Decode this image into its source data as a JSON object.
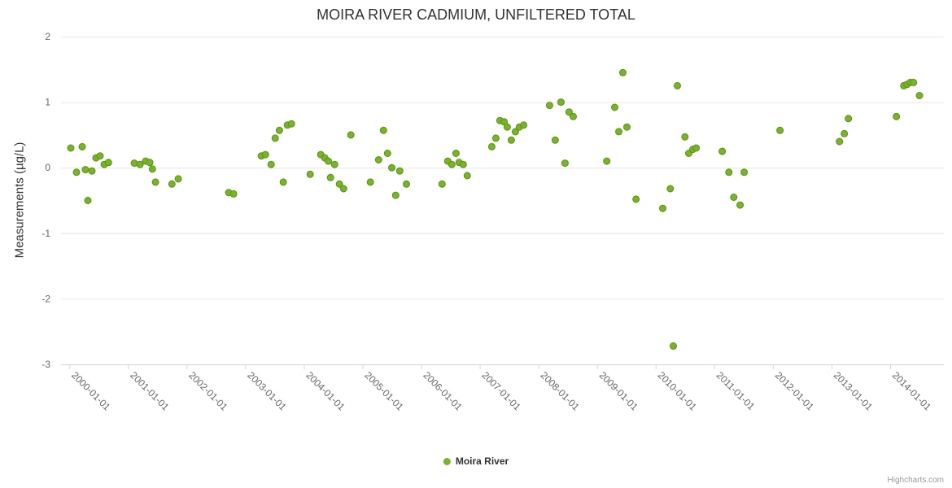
{
  "chart_data": {
    "type": "scatter",
    "title": "MOIRA RIVER CADMIUM, UNFILTERED TOTAL",
    "xlabel": "",
    "ylabel": "Measurements (µg/L)",
    "ylim": [
      -3,
      2
    ],
    "yticks": [
      -3,
      -2,
      -1,
      0,
      1,
      2
    ],
    "x_range": [
      "1999-11-10",
      "2014-12-01"
    ],
    "xtick_labels": [
      "2000-01-01",
      "2001-01-01",
      "2002-01-01",
      "2003-01-01",
      "2004-01-01",
      "2005-01-01",
      "2006-01-01",
      "2007-01-01",
      "2008-01-01",
      "2009-01-01",
      "2010-01-01",
      "2011-01-01",
      "2012-01-01",
      "2013-01-01",
      "2014-01-01"
    ],
    "legend_label": "Moira River",
    "legend_position": "bottom-center",
    "grid": "horizontal",
    "credits": "Highcharts.com",
    "colors": {
      "marker_fill": "#77b42a",
      "marker_stroke": "#5d9116",
      "grid": "#e6e6e6",
      "axis_line": "#ccd6eb",
      "tick_text": "#666666",
      "title_text": "#333333"
    },
    "series": [
      {
        "name": "Moira River",
        "points": [
          {
            "date": "2000-01-10",
            "value": 0.3
          },
          {
            "date": "2000-02-15",
            "value": -0.07
          },
          {
            "date": "2000-03-20",
            "value": 0.32
          },
          {
            "date": "2000-04-10",
            "value": -0.03
          },
          {
            "date": "2000-04-25",
            "value": -0.5
          },
          {
            "date": "2000-05-20",
            "value": -0.05
          },
          {
            "date": "2000-06-15",
            "value": 0.15
          },
          {
            "date": "2000-07-10",
            "value": 0.18
          },
          {
            "date": "2000-08-05",
            "value": 0.05
          },
          {
            "date": "2000-09-01",
            "value": 0.08
          },
          {
            "date": "2001-02-10",
            "value": 0.07
          },
          {
            "date": "2001-03-15",
            "value": 0.05
          },
          {
            "date": "2001-04-20",
            "value": 0.1
          },
          {
            "date": "2001-05-15",
            "value": 0.08
          },
          {
            "date": "2001-06-01",
            "value": -0.02
          },
          {
            "date": "2001-06-20",
            "value": -0.22
          },
          {
            "date": "2001-10-01",
            "value": -0.25
          },
          {
            "date": "2001-11-10",
            "value": -0.17
          },
          {
            "date": "2002-09-20",
            "value": -0.38
          },
          {
            "date": "2002-10-20",
            "value": -0.4
          },
          {
            "date": "2003-04-10",
            "value": 0.18
          },
          {
            "date": "2003-05-05",
            "value": 0.2
          },
          {
            "date": "2003-06-10",
            "value": 0.05
          },
          {
            "date": "2003-07-05",
            "value": 0.45
          },
          {
            "date": "2003-08-01",
            "value": 0.57
          },
          {
            "date": "2003-08-25",
            "value": -0.22
          },
          {
            "date": "2003-09-20",
            "value": 0.65
          },
          {
            "date": "2003-10-15",
            "value": 0.67
          },
          {
            "date": "2004-02-10",
            "value": -0.1
          },
          {
            "date": "2004-04-15",
            "value": 0.2
          },
          {
            "date": "2004-05-10",
            "value": 0.15
          },
          {
            "date": "2004-06-01",
            "value": 0.1
          },
          {
            "date": "2004-06-15",
            "value": -0.15
          },
          {
            "date": "2004-07-10",
            "value": 0.05
          },
          {
            "date": "2004-08-10",
            "value": -0.25
          },
          {
            "date": "2004-09-05",
            "value": -0.32
          },
          {
            "date": "2004-10-20",
            "value": 0.5
          },
          {
            "date": "2005-02-20",
            "value": -0.22
          },
          {
            "date": "2005-04-10",
            "value": 0.12
          },
          {
            "date": "2005-05-10",
            "value": 0.57
          },
          {
            "date": "2005-06-05",
            "value": 0.22
          },
          {
            "date": "2005-07-01",
            "value": 0.0
          },
          {
            "date": "2005-07-25",
            "value": -0.42
          },
          {
            "date": "2005-08-20",
            "value": -0.05
          },
          {
            "date": "2005-10-01",
            "value": -0.25
          },
          {
            "date": "2006-05-10",
            "value": -0.25
          },
          {
            "date": "2006-06-15",
            "value": 0.1
          },
          {
            "date": "2006-07-10",
            "value": 0.05
          },
          {
            "date": "2006-08-05",
            "value": 0.22
          },
          {
            "date": "2006-08-25",
            "value": 0.08
          },
          {
            "date": "2006-09-20",
            "value": 0.05
          },
          {
            "date": "2006-10-15",
            "value": -0.12
          },
          {
            "date": "2007-03-15",
            "value": 0.32
          },
          {
            "date": "2007-04-10",
            "value": 0.45
          },
          {
            "date": "2007-05-05",
            "value": 0.72
          },
          {
            "date": "2007-06-01",
            "value": 0.7
          },
          {
            "date": "2007-06-20",
            "value": 0.62
          },
          {
            "date": "2007-07-15",
            "value": 0.42
          },
          {
            "date": "2007-08-10",
            "value": 0.55
          },
          {
            "date": "2007-09-05",
            "value": 0.62
          },
          {
            "date": "2007-10-01",
            "value": 0.65
          },
          {
            "date": "2008-03-10",
            "value": 0.95
          },
          {
            "date": "2008-04-15",
            "value": 0.42
          },
          {
            "date": "2008-05-20",
            "value": 1.0
          },
          {
            "date": "2008-06-15",
            "value": 0.07
          },
          {
            "date": "2008-07-10",
            "value": 0.85
          },
          {
            "date": "2008-08-05",
            "value": 0.78
          },
          {
            "date": "2009-03-01",
            "value": 0.1
          },
          {
            "date": "2009-04-20",
            "value": 0.92
          },
          {
            "date": "2009-05-15",
            "value": 0.55
          },
          {
            "date": "2009-06-10",
            "value": 1.45
          },
          {
            "date": "2009-07-05",
            "value": 0.62
          },
          {
            "date": "2009-09-01",
            "value": -0.48
          },
          {
            "date": "2010-02-15",
            "value": -0.62
          },
          {
            "date": "2010-04-01",
            "value": -0.32
          },
          {
            "date": "2010-04-20",
            "value": -2.72
          },
          {
            "date": "2010-05-15",
            "value": 1.25
          },
          {
            "date": "2010-07-01",
            "value": 0.47
          },
          {
            "date": "2010-07-25",
            "value": 0.22
          },
          {
            "date": "2010-08-20",
            "value": 0.28
          },
          {
            "date": "2010-09-10",
            "value": 0.3
          },
          {
            "date": "2011-02-20",
            "value": 0.25
          },
          {
            "date": "2011-04-01",
            "value": -0.07
          },
          {
            "date": "2011-05-01",
            "value": -0.45
          },
          {
            "date": "2011-06-10",
            "value": -0.57
          },
          {
            "date": "2011-07-05",
            "value": -0.07
          },
          {
            "date": "2012-02-15",
            "value": 0.57
          },
          {
            "date": "2013-02-20",
            "value": 0.4
          },
          {
            "date": "2013-03-20",
            "value": 0.52
          },
          {
            "date": "2013-04-15",
            "value": 0.75
          },
          {
            "date": "2014-02-10",
            "value": 0.78
          },
          {
            "date": "2014-03-25",
            "value": 1.25
          },
          {
            "date": "2014-04-15",
            "value": 1.27
          },
          {
            "date": "2014-05-05",
            "value": 1.3
          },
          {
            "date": "2014-05-25",
            "value": 1.3
          },
          {
            "date": "2014-07-01",
            "value": 1.1
          }
        ]
      }
    ]
  }
}
